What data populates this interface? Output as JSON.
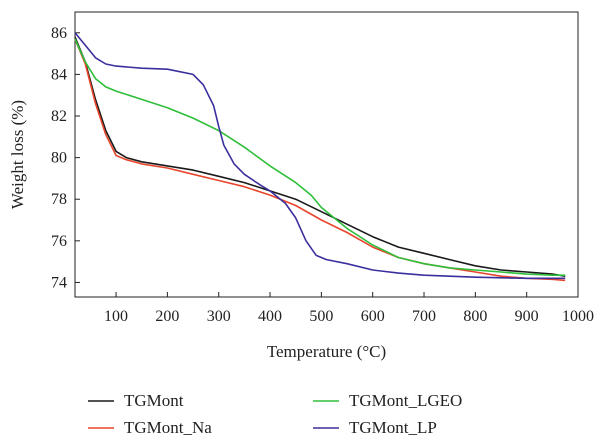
{
  "chart_data": {
    "type": "line",
    "title": "",
    "xlabel": "Temperature (°C)",
    "ylabel": "Weight loss (%)",
    "xlim": [
      20,
      1000
    ],
    "ylim": [
      73.3,
      87
    ],
    "x_ticks": [
      100,
      200,
      300,
      400,
      500,
      600,
      700,
      800,
      900,
      1000
    ],
    "y_ticks": [
      74,
      76,
      78,
      80,
      82,
      84,
      86
    ],
    "grid": false,
    "legend_position": "bottom",
    "series": [
      {
        "name": "TGMont",
        "color": "#1a1a1a",
        "points": [
          [
            20,
            85.8
          ],
          [
            40,
            84.6
          ],
          [
            60,
            82.8
          ],
          [
            80,
            81.3
          ],
          [
            100,
            80.3
          ],
          [
            120,
            80.0
          ],
          [
            150,
            79.8
          ],
          [
            200,
            79.6
          ],
          [
            250,
            79.4
          ],
          [
            300,
            79.1
          ],
          [
            350,
            78.8
          ],
          [
            400,
            78.4
          ],
          [
            450,
            78.0
          ],
          [
            500,
            77.4
          ],
          [
            550,
            76.8
          ],
          [
            600,
            76.2
          ],
          [
            650,
            75.7
          ],
          [
            700,
            75.4
          ],
          [
            750,
            75.1
          ],
          [
            800,
            74.8
          ],
          [
            850,
            74.6
          ],
          [
            900,
            74.5
          ],
          [
            950,
            74.4
          ],
          [
            975,
            74.3
          ]
        ]
      },
      {
        "name": "TGMont_Na",
        "color": "#e8462c",
        "points": [
          [
            20,
            85.7
          ],
          [
            40,
            84.5
          ],
          [
            60,
            82.6
          ],
          [
            80,
            81.1
          ],
          [
            100,
            80.1
          ],
          [
            120,
            79.9
          ],
          [
            150,
            79.7
          ],
          [
            200,
            79.5
          ],
          [
            250,
            79.2
          ],
          [
            300,
            78.9
          ],
          [
            350,
            78.6
          ],
          [
            400,
            78.2
          ],
          [
            450,
            77.7
          ],
          [
            500,
            77.0
          ],
          [
            550,
            76.4
          ],
          [
            600,
            75.7
          ],
          [
            650,
            75.2
          ],
          [
            700,
            74.9
          ],
          [
            750,
            74.7
          ],
          [
            800,
            74.5
          ],
          [
            850,
            74.3
          ],
          [
            900,
            74.2
          ],
          [
            950,
            74.15
          ],
          [
            975,
            74.1
          ]
        ]
      },
      {
        "name": "TGMont_LGEO",
        "color": "#2fbf3a",
        "points": [
          [
            20,
            85.7
          ],
          [
            40,
            84.6
          ],
          [
            60,
            83.8
          ],
          [
            80,
            83.4
          ],
          [
            100,
            83.2
          ],
          [
            150,
            82.8
          ],
          [
            200,
            82.4
          ],
          [
            250,
            81.9
          ],
          [
            300,
            81.3
          ],
          [
            350,
            80.5
          ],
          [
            400,
            79.6
          ],
          [
            450,
            78.8
          ],
          [
            480,
            78.2
          ],
          [
            500,
            77.6
          ],
          [
            550,
            76.6
          ],
          [
            600,
            75.8
          ],
          [
            650,
            75.2
          ],
          [
            700,
            74.9
          ],
          [
            750,
            74.7
          ],
          [
            800,
            74.6
          ],
          [
            850,
            74.5
          ],
          [
            900,
            74.4
          ],
          [
            950,
            74.35
          ],
          [
            975,
            74.35
          ]
        ]
      },
      {
        "name": "TGMont_LP",
        "color": "#3a2f9c",
        "points": [
          [
            20,
            86.0
          ],
          [
            40,
            85.4
          ],
          [
            60,
            84.8
          ],
          [
            80,
            84.5
          ],
          [
            100,
            84.4
          ],
          [
            150,
            84.3
          ],
          [
            200,
            84.25
          ],
          [
            250,
            84.0
          ],
          [
            270,
            83.5
          ],
          [
            290,
            82.5
          ],
          [
            300,
            81.5
          ],
          [
            310,
            80.6
          ],
          [
            330,
            79.7
          ],
          [
            350,
            79.2
          ],
          [
            380,
            78.7
          ],
          [
            400,
            78.4
          ],
          [
            430,
            77.8
          ],
          [
            450,
            77.1
          ],
          [
            470,
            76.0
          ],
          [
            490,
            75.3
          ],
          [
            510,
            75.1
          ],
          [
            550,
            74.9
          ],
          [
            600,
            74.6
          ],
          [
            650,
            74.45
          ],
          [
            700,
            74.35
          ],
          [
            800,
            74.25
          ],
          [
            900,
            74.2
          ],
          [
            975,
            74.2
          ]
        ]
      }
    ]
  }
}
